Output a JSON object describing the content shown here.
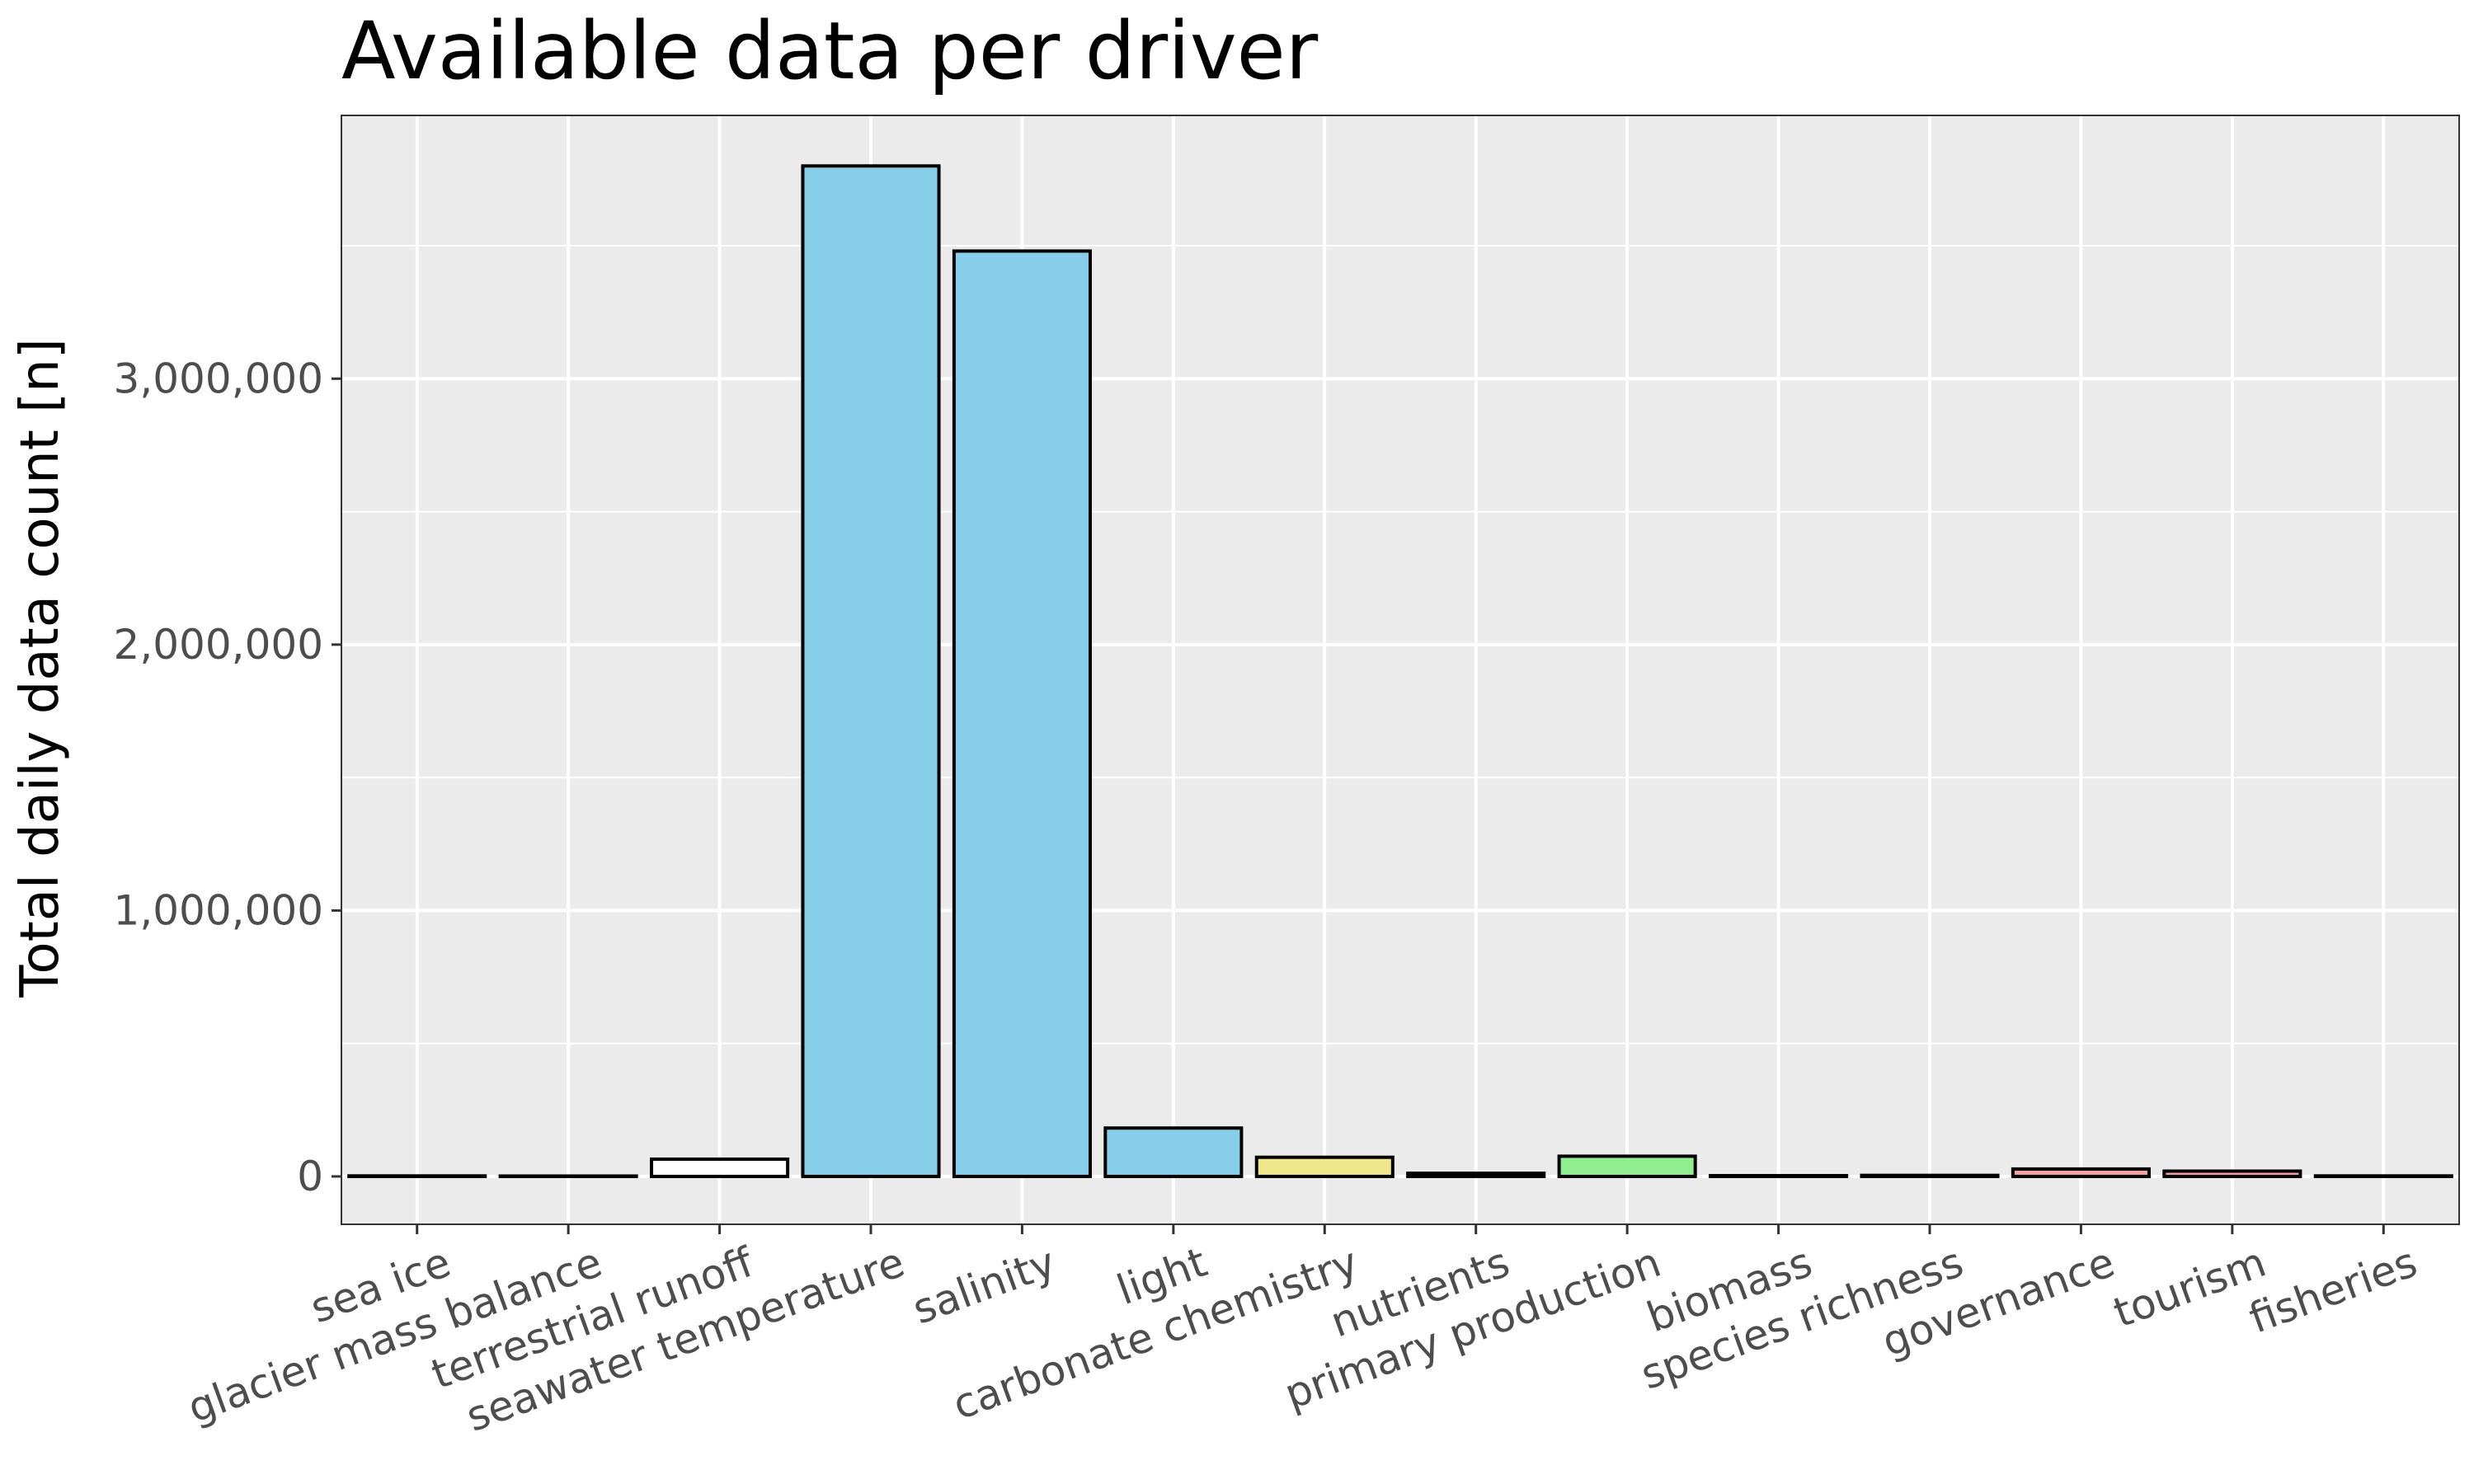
{
  "chart_data": {
    "type": "bar",
    "title": "Available data per driver",
    "xlabel": "",
    "ylabel": "Total daily data count [n]",
    "categories": [
      "sea ice",
      "glacier mass balance",
      "terrestrial runoff",
      "seawater temperature",
      "salinity",
      "light",
      "carbonate chemistry",
      "nutrients",
      "primary production",
      "biomass",
      "species richness",
      "governance",
      "tourism",
      "fisheries"
    ],
    "values": [
      2000,
      1500,
      65000,
      3800000,
      3480000,
      182000,
      72000,
      12000,
      76000,
      3000,
      4000,
      28000,
      20000,
      2000
    ],
    "colors": [
      "#f2f2f2",
      "#f2f2f2",
      "#ffffff",
      "#87ceeb",
      "#87ceeb",
      "#87ceeb",
      "#f0e68c",
      "#f0e68c",
      "#90ee90",
      "#90ee90",
      "#90ee90",
      "#f4a3a3",
      "#f4a3a3",
      "#f4a3a3"
    ],
    "yticks": [
      0,
      1000000,
      2000000,
      3000000
    ],
    "ytick_labels": [
      "0",
      "1,000,000",
      "2,000,000",
      "3,000,000"
    ],
    "ylim": [
      -180000,
      3990000
    ],
    "grid": true,
    "panel_background": "#ebebeb",
    "gridline_color": "#ffffff",
    "bar_outline": "#000000",
    "legend": "none"
  }
}
